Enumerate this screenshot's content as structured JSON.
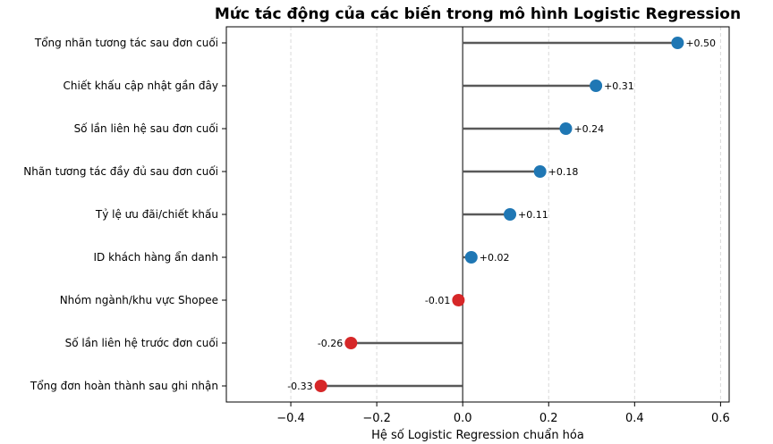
{
  "chart_data": {
    "type": "lollipop",
    "title": "Mức tác động của các biến trong mô hình Logistic Regression",
    "xlabel": "Hệ số Logistic Regression chuẩn hóa",
    "ylabel": "",
    "xlim": [
      -0.55,
      0.62
    ],
    "xticks": [
      -0.4,
      -0.2,
      0.0,
      0.2,
      0.4,
      0.6
    ],
    "xtick_labels": [
      "−0.4",
      "−0.2",
      "0.0",
      "0.2",
      "0.4",
      "0.6"
    ],
    "grid": "x-dashed",
    "colors": {
      "positive": "#1f77b4",
      "negative": "#d62728",
      "stem": "#595959",
      "zero_line": "#555555",
      "grid": "#d9d9d9"
    },
    "categories": [
      "Tổng nhãn tương tác sau đơn cuối",
      "Chiết khấu cập nhật gần đây",
      "Số lần liên hệ sau đơn cuối",
      "Nhãn tương tác đầy đủ sau đơn cuối",
      "Tỷ lệ ưu đãi/chiết khấu",
      "ID khách hàng ẩn danh",
      "Nhóm ngành/khu vực Shopee",
      "Số lần liên hệ trước đơn cuối",
      "Tổng đơn hoàn thành sau ghi nhận"
    ],
    "values": [
      0.5,
      0.31,
      0.24,
      0.18,
      0.11,
      0.02,
      -0.01,
      -0.26,
      -0.33
    ],
    "value_labels": [
      "+0.50",
      "+0.31",
      "+0.24",
      "+0.18",
      "+0.11",
      "+0.02",
      "-0.01",
      "-0.26",
      "-0.33"
    ]
  }
}
